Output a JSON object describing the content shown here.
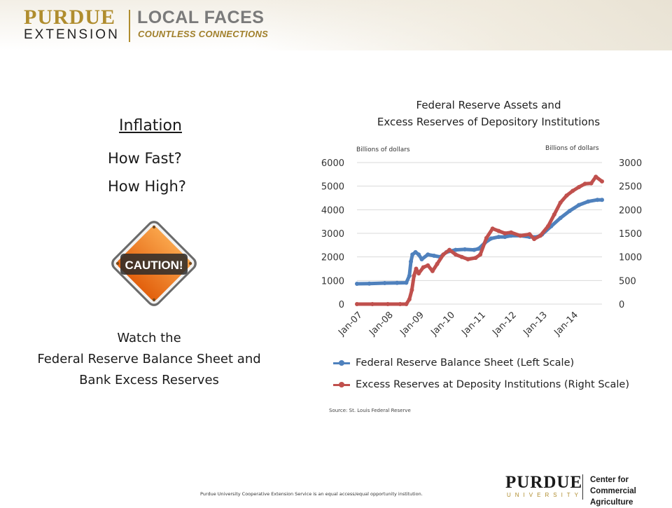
{
  "header": {
    "logo_purdue": "PURDUE",
    "logo_extension": "EXTENSION",
    "logo_local_faces": "LOCAL FACES",
    "logo_tagline": "COUNTLESS CONNECTIONS"
  },
  "left": {
    "heading": "Inflation",
    "question1": "How Fast?",
    "question2": "How High?",
    "caution_sign": "CAUTION!",
    "watch_line1": "Watch the",
    "watch_line2": "Federal Reserve Balance Sheet and",
    "watch_line3": "Bank Excess Reserves"
  },
  "colors": {
    "balance_sheet": "#4f81bd",
    "excess_reserves": "#c0504d",
    "brand_gold": "#b08d2e",
    "caution_orange": "#f07a16"
  },
  "chart_data": {
    "type": "line",
    "title_line1": "Federal Reserve Assets and",
    "title_line2": "Excess Reserves of Depository Institutions",
    "left_axis_label": "Billions of dollars",
    "right_axis_label": "Billions of dollars",
    "y_left_ticks": [
      "0",
      "1000",
      "2000",
      "3000",
      "4000",
      "5000",
      "6000"
    ],
    "y_right_ticks": [
      "0",
      "500",
      "1000",
      "1500",
      "2000",
      "2500",
      "3000"
    ],
    "y_left_range": [
      0,
      6000
    ],
    "y_right_range": [
      0,
      3000
    ],
    "x_ticks": [
      "Jan-07",
      "Jan-08",
      "Jan-09",
      "Jan-10",
      "Jan-11",
      "Jan-12",
      "Jan-13",
      "Jan-14"
    ],
    "x_range": [
      2007.0,
      2014.95
    ],
    "gridlines": true,
    "legend_position": "bottom",
    "series": [
      {
        "name": "Federal Reserve Balance Sheet (Left Scale)",
        "axis": "left",
        "points": [
          [
            2007.0,
            860
          ],
          [
            2007.4,
            870
          ],
          [
            2007.9,
            890
          ],
          [
            2008.3,
            900
          ],
          [
            2008.6,
            905
          ],
          [
            2008.7,
            1200
          ],
          [
            2008.75,
            1800
          ],
          [
            2008.8,
            2100
          ],
          [
            2008.9,
            2200
          ],
          [
            2009.0,
            2100
          ],
          [
            2009.1,
            1900
          ],
          [
            2009.3,
            2100
          ],
          [
            2009.5,
            2050
          ],
          [
            2009.7,
            2000
          ],
          [
            2009.9,
            2200
          ],
          [
            2010.2,
            2300
          ],
          [
            2010.5,
            2320
          ],
          [
            2010.8,
            2300
          ],
          [
            2010.95,
            2350
          ],
          [
            2011.15,
            2600
          ],
          [
            2011.35,
            2780
          ],
          [
            2011.6,
            2850
          ],
          [
            2011.8,
            2850
          ],
          [
            2012.0,
            2900
          ],
          [
            2012.3,
            2900
          ],
          [
            2012.6,
            2850
          ],
          [
            2012.85,
            2850
          ],
          [
            2013.0,
            2950
          ],
          [
            2013.3,
            3300
          ],
          [
            2013.6,
            3650
          ],
          [
            2013.9,
            3950
          ],
          [
            2014.2,
            4200
          ],
          [
            2014.5,
            4350
          ],
          [
            2014.8,
            4420
          ],
          [
            2014.95,
            4420
          ]
        ]
      },
      {
        "name": "Excess Reserves at Deposity Institutions (Right Scale)",
        "axis": "right",
        "points": [
          [
            2007.0,
            0
          ],
          [
            2007.5,
            0
          ],
          [
            2008.0,
            0
          ],
          [
            2008.4,
            0
          ],
          [
            2008.6,
            0
          ],
          [
            2008.7,
            100
          ],
          [
            2008.78,
            300
          ],
          [
            2008.85,
            600
          ],
          [
            2008.92,
            750
          ],
          [
            2009.0,
            650
          ],
          [
            2009.15,
            780
          ],
          [
            2009.3,
            820
          ],
          [
            2009.45,
            700
          ],
          [
            2009.6,
            850
          ],
          [
            2009.8,
            1050
          ],
          [
            2010.0,
            1150
          ],
          [
            2010.2,
            1050
          ],
          [
            2010.4,
            1000
          ],
          [
            2010.6,
            950
          ],
          [
            2010.85,
            980
          ],
          [
            2011.0,
            1050
          ],
          [
            2011.2,
            1400
          ],
          [
            2011.4,
            1600
          ],
          [
            2011.6,
            1550
          ],
          [
            2011.8,
            1500
          ],
          [
            2012.0,
            1520
          ],
          [
            2012.3,
            1450
          ],
          [
            2012.6,
            1480
          ],
          [
            2012.75,
            1380
          ],
          [
            2012.95,
            1450
          ],
          [
            2013.2,
            1650
          ],
          [
            2013.4,
            1900
          ],
          [
            2013.6,
            2150
          ],
          [
            2013.8,
            2300
          ],
          [
            2014.0,
            2400
          ],
          [
            2014.2,
            2480
          ],
          [
            2014.4,
            2550
          ],
          [
            2014.6,
            2560
          ],
          [
            2014.75,
            2700
          ],
          [
            2014.95,
            2600
          ]
        ]
      }
    ],
    "source": "Source: St. Louis Federal Reserve"
  },
  "footer": {
    "equal_opportunity": "Purdue University Cooperative Extension Service is an equal access/equal opportunity institution.",
    "purdue": "PURDUE",
    "university": "UNIVERSITY",
    "center_line1": "Center for",
    "center_line2": "Commercial Agriculture"
  }
}
